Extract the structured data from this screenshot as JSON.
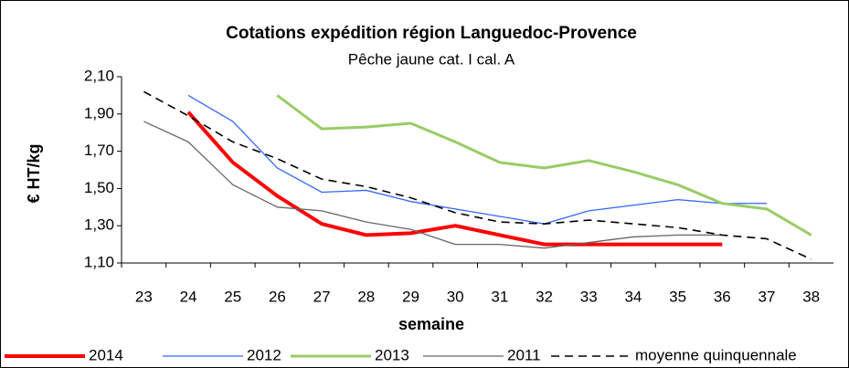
{
  "chart_data": {
    "type": "line",
    "title": "Cotations expédition région Languedoc-Provence",
    "subtitle": "Pêche jaune cat. I cal. A",
    "y_label": "€ HT/kg",
    "x_label": "semaine",
    "categories": [
      23,
      24,
      25,
      26,
      27,
      28,
      29,
      30,
      31,
      32,
      33,
      34,
      35,
      36,
      37,
      38
    ],
    "ylim": [
      1.1,
      2.1
    ],
    "yticks": [
      {
        "value": 1.1,
        "label": "1,10"
      },
      {
        "value": 1.3,
        "label": "1,30"
      },
      {
        "value": 1.5,
        "label": "1,50"
      },
      {
        "value": 1.7,
        "label": "1,70"
      },
      {
        "value": 1.9,
        "label": "1,90"
      },
      {
        "value": 2.1,
        "label": "2,10"
      }
    ],
    "legend": "bottom",
    "series": [
      {
        "name": "2014",
        "color": "#ff0000",
        "width": 4,
        "dashed": false,
        "values": [
          null,
          1.91,
          1.64,
          1.46,
          1.31,
          1.25,
          1.26,
          1.3,
          1.25,
          1.2,
          1.2,
          1.2,
          1.2,
          1.2,
          null,
          null
        ]
      },
      {
        "name": "2012",
        "color": "#3366ff",
        "width": 1.3,
        "dashed": false,
        "values": [
          null,
          2.0,
          1.86,
          1.61,
          1.48,
          1.49,
          1.43,
          1.39,
          1.35,
          1.31,
          1.38,
          1.41,
          1.44,
          1.42,
          1.42,
          null
        ]
      },
      {
        "name": "2013",
        "color": "#99cc66",
        "width": 3,
        "dashed": false,
        "values": [
          null,
          null,
          null,
          2.0,
          1.82,
          1.83,
          1.85,
          1.75,
          1.64,
          1.61,
          1.65,
          1.59,
          1.52,
          1.42,
          1.39,
          1.25
        ]
      },
      {
        "name": "2011",
        "color": "#666666",
        "width": 1.3,
        "dashed": false,
        "values": [
          1.86,
          1.75,
          1.52,
          1.4,
          1.38,
          1.32,
          1.28,
          1.2,
          1.2,
          1.18,
          1.21,
          1.24,
          1.25,
          1.25,
          null,
          null
        ]
      },
      {
        "name": "moyenne quinquennale",
        "color": "#000000",
        "width": 1.6,
        "dashed": true,
        "values": [
          2.02,
          1.89,
          1.75,
          1.66,
          1.55,
          1.51,
          1.45,
          1.37,
          1.32,
          1.31,
          1.33,
          1.31,
          1.29,
          1.25,
          1.23,
          1.12
        ]
      }
    ]
  }
}
